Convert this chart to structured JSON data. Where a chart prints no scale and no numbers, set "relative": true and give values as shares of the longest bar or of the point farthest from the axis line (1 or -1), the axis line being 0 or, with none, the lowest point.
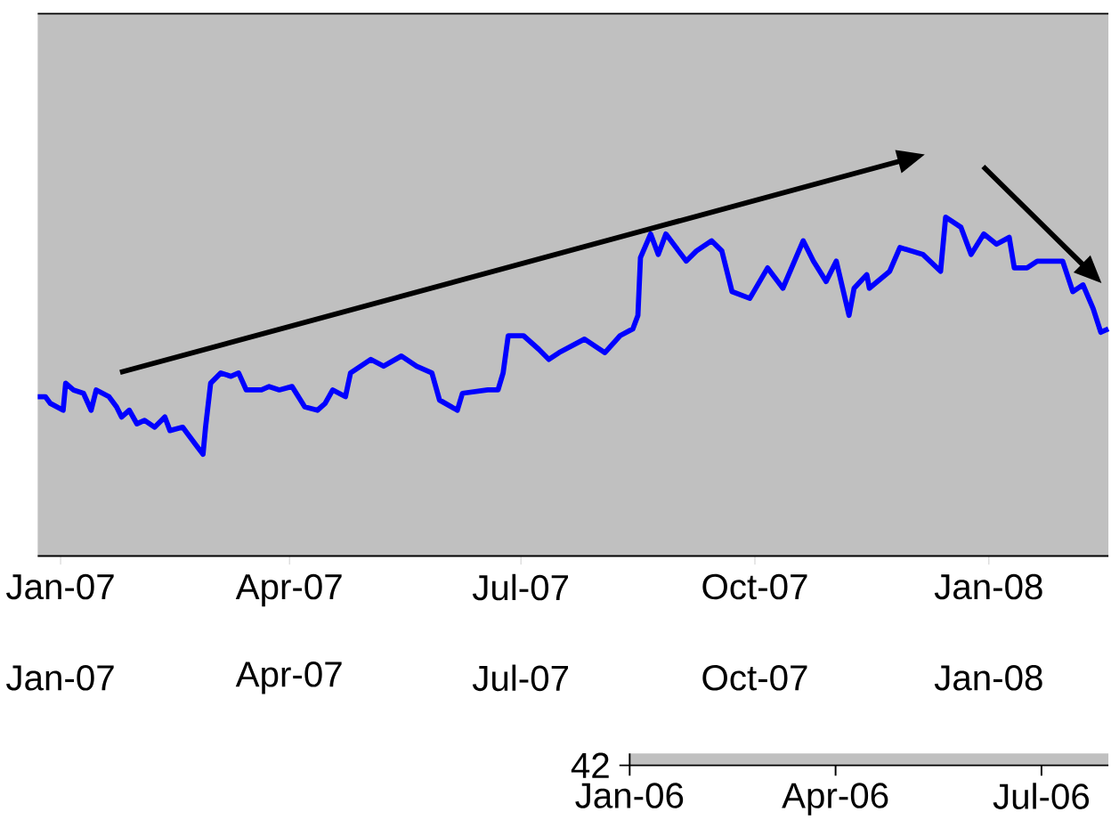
{
  "chart_data": [
    {
      "type": "line",
      "relative": true,
      "xlim": [
        "2006-12-23",
        "2008-02-17"
      ],
      "xticks": [
        {
          "value": "2007-01-01",
          "label": "Jan-07"
        },
        {
          "value": "2007-04-01",
          "label": "Apr-07"
        },
        {
          "value": "2007-07-01",
          "label": "Jul-07"
        },
        {
          "value": "2007-10-01",
          "label": "Oct-07"
        },
        {
          "value": "2008-01-01",
          "label": "Jan-08"
        }
      ],
      "x2lim": [
        "2006-12-23",
        "2008-02-17"
      ],
      "x2ticks": [
        {
          "value": "2007-01-01",
          "label": "Jan-07"
        },
        {
          "value": "2007-04-01",
          "label": "Apr-07"
        },
        {
          "value": "2007-07-01",
          "label": "Jul-07"
        },
        {
          "value": "2007-10-01",
          "label": "Oct-07"
        },
        {
          "value": "2008-01-01",
          "label": "Jan-08"
        }
      ],
      "x": [
        "2006-12-23",
        "2006-12-26",
        "2006-12-28",
        "2007-01-02",
        "2007-01-03",
        "2007-01-06",
        "2007-01-10",
        "2007-01-13",
        "2007-01-15",
        "2007-01-20",
        "2007-01-23",
        "2007-01-25",
        "2007-01-28",
        "2007-01-31",
        "2007-02-03",
        "2007-02-07",
        "2007-02-11",
        "2007-02-13",
        "2007-02-18",
        "2007-02-20",
        "2007-02-24",
        "2007-02-26",
        "2007-02-27",
        "2007-03-01",
        "2007-03-05",
        "2007-03-09",
        "2007-03-12",
        "2007-03-15",
        "2007-03-21",
        "2007-03-24",
        "2007-03-28",
        "2007-04-02",
        "2007-04-07",
        "2007-04-12",
        "2007-04-15",
        "2007-04-18",
        "2007-04-23",
        "2007-04-25",
        "2007-05-03",
        "2007-05-08",
        "2007-05-15",
        "2007-05-21",
        "2007-05-27",
        "2007-05-30",
        "2007-06-06",
        "2007-06-08",
        "2007-06-18",
        "2007-06-22",
        "2007-06-24",
        "2007-06-26",
        "2007-07-02",
        "2007-07-08",
        "2007-07-12",
        "2007-07-16",
        "2007-07-26",
        "2007-08-03",
        "2007-08-09",
        "2007-08-14",
        "2007-08-16",
        "2007-08-17",
        "2007-08-21",
        "2007-08-24",
        "2007-08-27",
        "2007-08-30",
        "2007-09-04",
        "2007-09-08",
        "2007-09-14",
        "2007-09-18",
        "2007-09-22",
        "2007-09-29",
        "2007-10-06",
        "2007-10-12",
        "2007-10-20",
        "2007-10-24",
        "2007-10-29",
        "2007-11-02",
        "2007-11-07",
        "2007-11-09",
        "2007-11-14",
        "2007-11-15",
        "2007-11-23",
        "2007-11-27",
        "2007-12-06",
        "2007-12-13",
        "2007-12-15",
        "2007-12-21",
        "2007-12-25",
        "2007-12-30",
        "2008-01-04",
        "2008-01-09",
        "2008-01-11",
        "2008-01-16",
        "2008-01-20",
        "2008-01-25",
        "2008-01-30",
        "2008-02-03",
        "2008-02-07",
        "2008-02-11",
        "2008-02-14",
        "2008-02-17"
      ],
      "series": [
        {
          "color": "#0000ff",
          "values": [
            0.47,
            0.47,
            0.45,
            0.43,
            0.51,
            0.49,
            0.48,
            0.43,
            0.49,
            0.47,
            0.44,
            0.41,
            0.43,
            0.39,
            0.4,
            0.38,
            0.41,
            0.37,
            0.38,
            0.36,
            0.32,
            0.3,
            0.38,
            0.51,
            0.54,
            0.53,
            0.54,
            0.49,
            0.49,
            0.5,
            0.49,
            0.5,
            0.44,
            0.43,
            0.45,
            0.49,
            0.47,
            0.54,
            0.58,
            0.56,
            0.59,
            0.56,
            0.54,
            0.46,
            0.43,
            0.48,
            0.49,
            0.49,
            0.54,
            0.65,
            0.65,
            0.61,
            0.58,
            0.6,
            0.64,
            0.6,
            0.65,
            0.67,
            0.71,
            0.88,
            0.95,
            0.89,
            0.95,
            0.92,
            0.87,
            0.9,
            0.93,
            0.9,
            0.78,
            0.76,
            0.85,
            0.79,
            0.93,
            0.87,
            0.81,
            0.87,
            0.71,
            0.79,
            0.83,
            0.79,
            0.84,
            0.91,
            0.89,
            0.84,
            1.0,
            0.97,
            0.89,
            0.95,
            0.92,
            0.94,
            0.85,
            0.85,
            0.87,
            0.87,
            0.87,
            0.78,
            0.8,
            0.73,
            0.66,
            0.67
          ]
        }
      ]
    },
    {
      "type": "other",
      "annotations": [
        "42",
        "Jan-06",
        "Apr-06",
        "Jul-06"
      ]
    }
  ]
}
